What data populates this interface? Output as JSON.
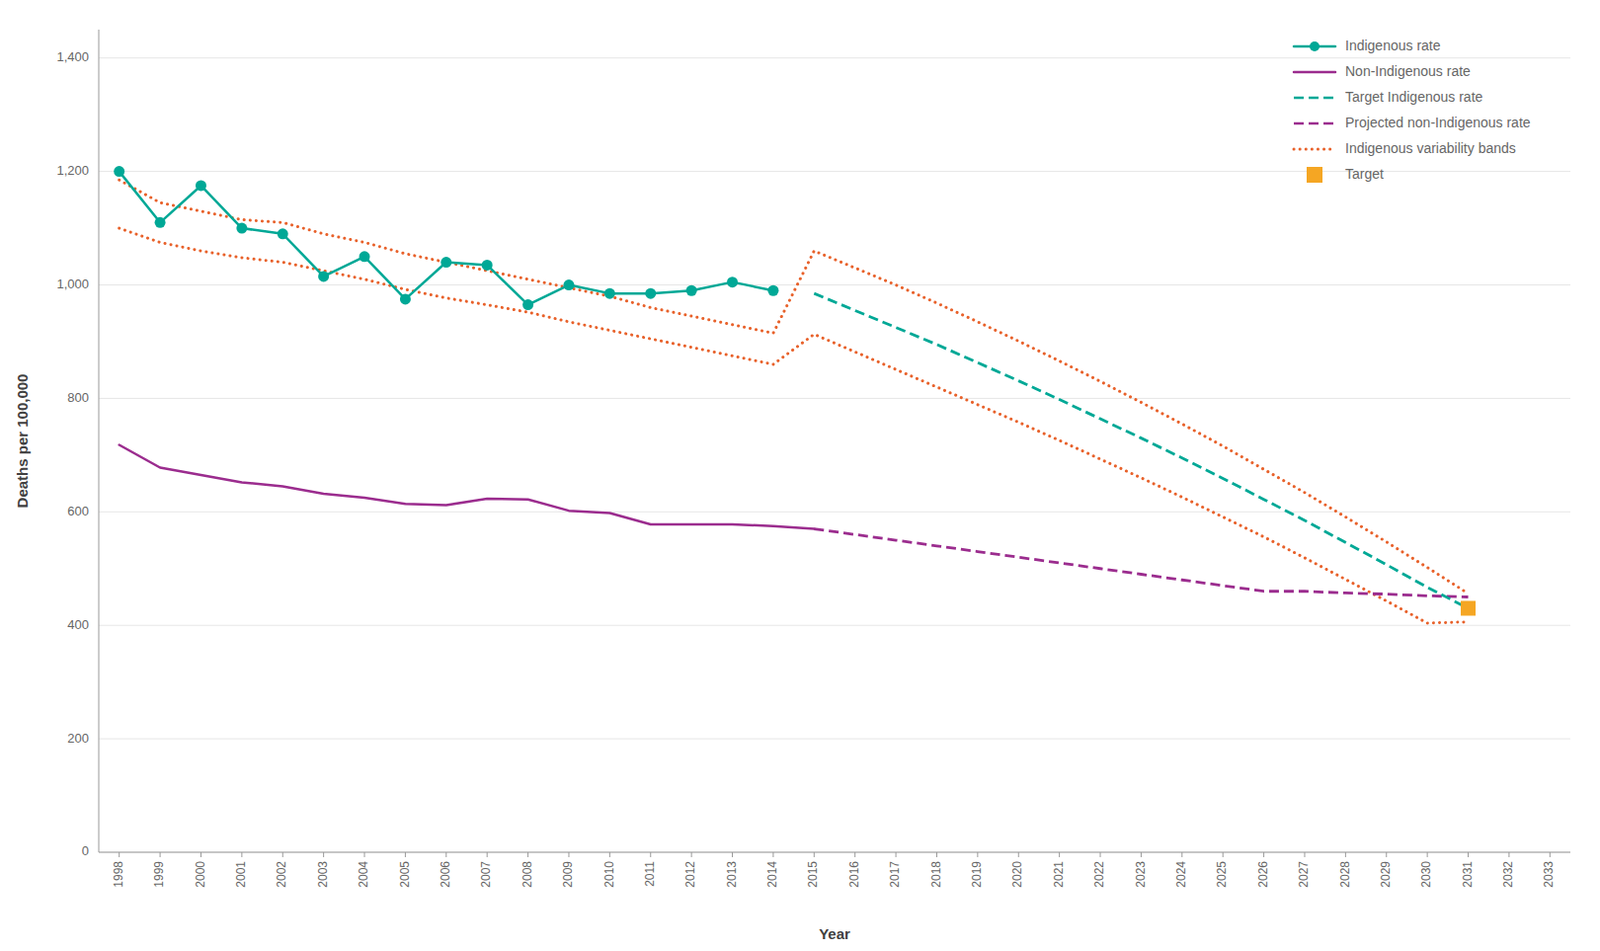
{
  "chart_data": {
    "type": "line",
    "xlabel": "Year",
    "ylabel": "Deaths per 100,000",
    "xlim": [
      1997.5,
      2033.5
    ],
    "xticks": [
      1998,
      1999,
      2000,
      2001,
      2002,
      2003,
      2004,
      2005,
      2006,
      2007,
      2008,
      2009,
      2010,
      2011,
      2012,
      2013,
      2014,
      2015,
      2016,
      2017,
      2018,
      2019,
      2020,
      2021,
      2022,
      2023,
      2024,
      2025,
      2026,
      2027,
      2028,
      2029,
      2030,
      2031,
      2032,
      2033
    ],
    "ylim": [
      0,
      1450
    ],
    "yticks": [
      0,
      200,
      400,
      600,
      800,
      {
        "value": 1000,
        "label": "1,000"
      },
      {
        "value": 1200,
        "label": "1,200"
      },
      {
        "value": 1400,
        "label": "1,400"
      }
    ],
    "grid": true,
    "legend": "upper right",
    "series": [
      {
        "name": "Indigenous rate",
        "type": "line",
        "color": "#00A896",
        "line_style": "solid",
        "marker": "circle",
        "x": [
          1998,
          1999,
          2000,
          2001,
          2002,
          2003,
          2004,
          2005,
          2006,
          2007,
          2008,
          2009,
          2010,
          2011,
          2012,
          2013,
          2014
        ],
        "values": [
          1200,
          1110,
          1175,
          1100,
          1090,
          1015,
          1050,
          975,
          1040,
          1035,
          965,
          1000,
          985,
          985,
          990,
          1005,
          990
        ]
      },
      {
        "name": "Non-Indigenous rate",
        "type": "line",
        "color": "#9B2C8E",
        "line_style": "solid",
        "x": [
          1998,
          1999,
          2000,
          2001,
          2002,
          2003,
          2004,
          2005,
          2006,
          2007,
          2008,
          2009,
          2010,
          2011,
          2012,
          2013,
          2014,
          2015
        ],
        "values": [
          718,
          678,
          665,
          652,
          645,
          632,
          625,
          614,
          612,
          623,
          622,
          602,
          598,
          578,
          578,
          578,
          575,
          570
        ]
      },
      {
        "name": "Target Indigenous rate",
        "type": "line",
        "color": "#00A896",
        "line_style": "dashed",
        "x": [
          2015,
          2016,
          2017,
          2018,
          2019,
          2020,
          2021,
          2022,
          2023,
          2024,
          2025,
          2026,
          2027,
          2028,
          2029,
          2030,
          2031
        ],
        "values": [
          985,
          955,
          925,
          895,
          863,
          831,
          798,
          764,
          730,
          695,
          659,
          622,
          585,
          546,
          507,
          467,
          430
        ]
      },
      {
        "name": "Projected non-Indigenous rate",
        "type": "line",
        "color": "#9B2C8E",
        "line_style": "dashed",
        "x": [
          2015,
          2016,
          2017,
          2018,
          2019,
          2020,
          2021,
          2022,
          2023,
          2024,
          2025,
          2026,
          2027,
          2028,
          2029,
          2030,
          2031
        ],
        "values": [
          570,
          560,
          550,
          540,
          530,
          520,
          510,
          500,
          490,
          480,
          470,
          460,
          460,
          457,
          455,
          452,
          450
        ]
      },
      {
        "name": "Indigenous variability bands",
        "type": "line",
        "color": "#E8612A",
        "line_style": "dotted",
        "x": [
          1998,
          1999,
          2000,
          2001,
          2002,
          2003,
          2004,
          2005,
          2006,
          2007,
          2008,
          2009,
          2010,
          2011,
          2012,
          2013,
          2014,
          2015,
          2016,
          2017,
          2018,
          2019,
          2020,
          2021,
          2022,
          2023,
          2024,
          2025,
          2026,
          2027,
          2028,
          2029,
          2030,
          2031
        ],
        "values": [
          1185,
          1145,
          1130,
          1115,
          1110,
          1090,
          1075,
          1055,
          1040,
          1025,
          1010,
          995,
          980,
          960,
          945,
          930,
          915,
          1060,
          1030,
          1000,
          968,
          935,
          901,
          866,
          830,
          793,
          755,
          716,
          675,
          634,
          591,
          547,
          502,
          456
        ]
      },
      {
        "type": "line",
        "color": "#E8612A",
        "line_style": "dotted",
        "x": [
          1998,
          1999,
          2000,
          2001,
          2002,
          2003,
          2004,
          2005,
          2006,
          2007,
          2008,
          2009,
          2010,
          2011,
          2012,
          2013,
          2014,
          2015,
          2016,
          2017,
          2018,
          2019,
          2020,
          2021,
          2022,
          2023,
          2024,
          2025,
          2026,
          2027,
          2028,
          2029,
          2030,
          2031
        ],
        "values": [
          1100,
          1075,
          1060,
          1048,
          1040,
          1025,
          1010,
          992,
          977,
          965,
          952,
          935,
          920,
          905,
          890,
          875,
          860,
          913,
          882,
          851,
          820,
          789,
          758,
          726,
          693,
          660,
          626,
          591,
          556,
          519,
          481,
          443,
          404,
          406
        ]
      },
      {
        "name": "Target",
        "type": "scatter",
        "color": "#F5A623",
        "marker": "square",
        "x": [
          2031
        ],
        "values": [
          430
        ]
      }
    ]
  }
}
